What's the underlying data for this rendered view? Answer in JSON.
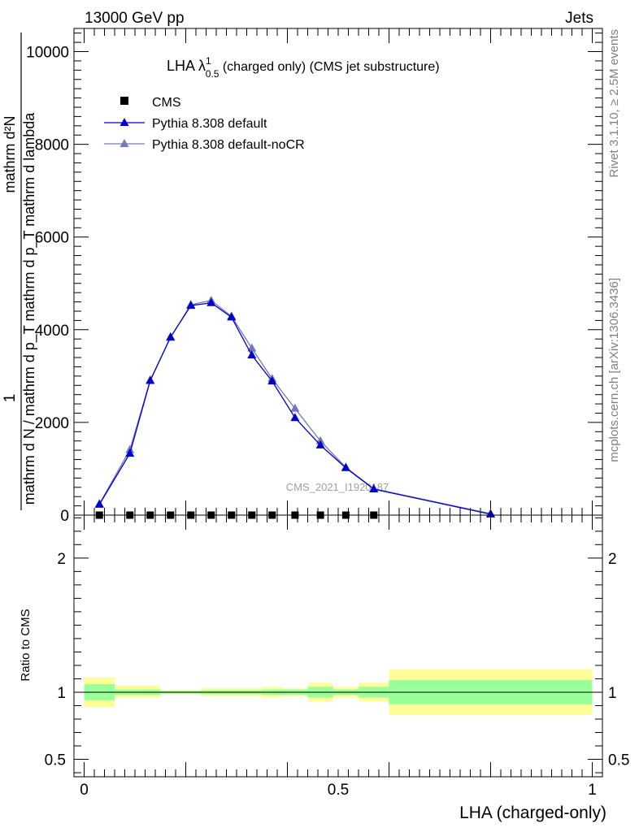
{
  "header": {
    "left": "13000 GeV pp",
    "right": "Jets"
  },
  "side_labels": {
    "rivet": "Rivet 3.1.10, ≥ 2.5M events",
    "mcplots": "mcplots.cern.ch [arXiv:1306.3436]"
  },
  "chart_data": [
    {
      "type": "line",
      "title_main": "LHA λ",
      "title_sup": "1",
      "title_sub": "0.5",
      "title_rest": " (charged only) (CMS jet substructure)",
      "watermark": "CMS_2021_I1920187",
      "ylabel_line1": "1",
      "ylabel_line2": "mathrm d N / mathrm d p_T mathrm d p_T mathrm d lambda",
      "ylabel_numer": "mathrm d²N",
      "ylim": [
        0,
        10500
      ],
      "yticks": [
        {
          "v": 0,
          "label": "0"
        },
        {
          "v": 2000,
          "label": "2000"
        },
        {
          "v": 4000,
          "label": "4000"
        },
        {
          "v": 6000,
          "label": "6000"
        },
        {
          "v": 8000,
          "label": "8000"
        },
        {
          "v": 10000,
          "label": "10000"
        }
      ],
      "xlim": [
        -0.02,
        1.02
      ],
      "legend": [
        {
          "name": "CMS",
          "marker": "square",
          "color": "#000000"
        },
        {
          "name": "Pythia 8.308 default",
          "marker": "triangle",
          "color": "#0000cc"
        },
        {
          "name": "Pythia 8.308 default-noCR",
          "marker": "triangle",
          "color": "#7777bb"
        }
      ],
      "cms": {
        "x": [
          0.03,
          0.09,
          0.13,
          0.17,
          0.21,
          0.25,
          0.29,
          0.33,
          0.37,
          0.415,
          0.465,
          0.515,
          0.57
        ],
        "y": [
          0,
          0,
          0,
          0,
          0,
          0,
          0,
          0,
          0,
          0,
          0,
          0,
          0
        ]
      },
      "series": [
        {
          "name": "Pythia 8.308 default",
          "color": "#0000cc",
          "x": [
            0.03,
            0.09,
            0.13,
            0.17,
            0.21,
            0.25,
            0.29,
            0.33,
            0.37,
            0.415,
            0.465,
            0.515,
            0.57,
            0.8
          ],
          "y": [
            230,
            1330,
            2900,
            3840,
            4520,
            4580,
            4270,
            3450,
            2890,
            2100,
            1510,
            1020,
            560,
            20
          ]
        },
        {
          "name": "Pythia 8.308 default-noCR",
          "color": "#7777bb",
          "x": [
            0.03,
            0.09,
            0.13,
            0.17,
            0.21,
            0.25,
            0.29,
            0.33,
            0.37,
            0.415,
            0.465,
            0.515,
            0.57,
            0.8
          ],
          "y": [
            240,
            1410,
            2910,
            3830,
            4540,
            4630,
            4290,
            3600,
            2940,
            2300,
            1600,
            1030,
            570,
            30
          ]
        }
      ]
    },
    {
      "type": "area",
      "ylabel": "Ratio to CMS",
      "ylim": [
        0.37,
        2.32
      ],
      "xlim": [
        -0.02,
        1.02
      ],
      "yticks": [
        {
          "v": 0.5,
          "label": "0.5"
        },
        {
          "v": 1,
          "label": "1"
        },
        {
          "v": 2,
          "label": "2"
        }
      ],
      "xticks": [
        {
          "v": 0,
          "label": "0"
        },
        {
          "v": 0.5,
          "label": "0.5"
        },
        {
          "v": 1,
          "label": "1"
        }
      ],
      "xlabel": "LHA (charged-only)",
      "bands": [
        {
          "x0": 0.0,
          "x1": 0.06,
          "stat": [
            0.94,
            1.06
          ],
          "total": [
            0.89,
            1.11
          ]
        },
        {
          "x0": 0.06,
          "x1": 0.15,
          "stat": [
            0.98,
            1.02
          ],
          "total": [
            0.96,
            1.05
          ]
        },
        {
          "x0": 0.15,
          "x1": 0.23,
          "stat": [
            0.99,
            1.01
          ],
          "total": [
            0.985,
            1.015
          ]
        },
        {
          "x0": 0.23,
          "x1": 0.35,
          "stat": [
            0.985,
            1.015
          ],
          "total": [
            0.97,
            1.03
          ]
        },
        {
          "x0": 0.35,
          "x1": 0.39,
          "stat": [
            0.98,
            1.02
          ],
          "total": [
            0.96,
            1.04
          ]
        },
        {
          "x0": 0.39,
          "x1": 0.44,
          "stat": [
            0.98,
            1.02
          ],
          "total": [
            0.97,
            1.03
          ]
        },
        {
          "x0": 0.44,
          "x1": 0.49,
          "stat": [
            0.96,
            1.04
          ],
          "total": [
            0.93,
            1.07
          ]
        },
        {
          "x0": 0.49,
          "x1": 0.54,
          "stat": [
            0.98,
            1.02
          ],
          "total": [
            0.96,
            1.04
          ]
        },
        {
          "x0": 0.54,
          "x1": 0.6,
          "stat": [
            0.96,
            1.04
          ],
          "total": [
            0.93,
            1.07
          ]
        },
        {
          "x0": 0.6,
          "x1": 1.0,
          "stat": [
            0.91,
            1.09
          ],
          "total": [
            0.83,
            1.17
          ]
        }
      ],
      "stat_color": "#99ff99",
      "total_color": "#ffff99",
      "ref_line": 1
    }
  ]
}
